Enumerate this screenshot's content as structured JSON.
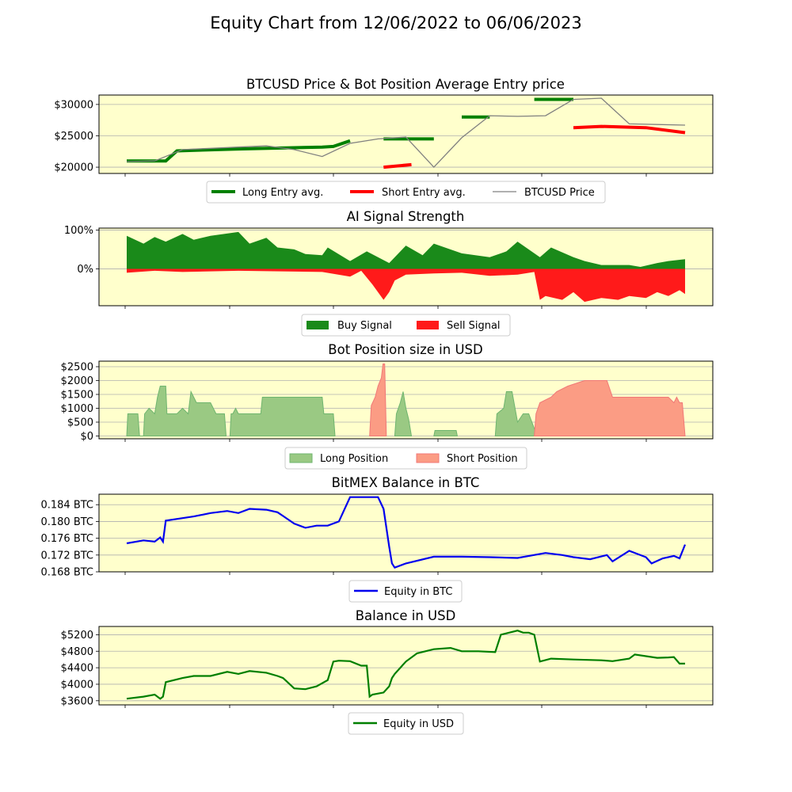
{
  "title": "Equity Chart from 12/06/2022 to 06/06/2023",
  "colors": {
    "panel_bg": "#ffffcc",
    "grid": "#b0b0b0",
    "long": "#008000",
    "short": "#ff0000",
    "price": "#808080",
    "buy": "#1a8a1a",
    "sell": "#ff1a1a",
    "long_pos": "#9ac983",
    "long_pos_edge": "#6fb56f",
    "short_pos": "#fb9c84",
    "short_pos_edge": "#f07878",
    "btc": "#0000ee",
    "usd": "#007f00"
  },
  "chart_data": [
    {
      "id": "price",
      "type": "line",
      "title": "BTCUSD Price & Bot Position Average Entry price",
      "ylim": [
        19000,
        31500
      ],
      "yticks": [
        20000,
        25000,
        30000
      ],
      "ytick_labels": [
        "$20000",
        "$25000",
        "$30000"
      ],
      "x": [
        0,
        5,
        10,
        15,
        20,
        25,
        30,
        35,
        40,
        45,
        50,
        55,
        60,
        65,
        70,
        75,
        80,
        85,
        90,
        95,
        100
      ],
      "series": [
        {
          "name": "BTCUSD Price",
          "values": [
            20900,
            21000,
            22800,
            23000,
            23200,
            23400,
            22800,
            21700,
            23800,
            24500,
            24800,
            20000,
            24700,
            28200,
            28100,
            28200,
            30800,
            31000,
            26900,
            26800,
            26700
          ]
        },
        {
          "name": "Long Entry avg.",
          "segments": [
            [
              [
                0,
                21000
              ],
              [
                7,
                21000
              ],
              [
                9,
                22600
              ],
              [
                20,
                22900
              ],
              [
                35,
                23200
              ],
              [
                37,
                23300
              ],
              [
                40,
                24200
              ]
            ],
            [
              [
                46,
                24500
              ],
              [
                55,
                24500
              ]
            ],
            [
              [
                60,
                28000
              ],
              [
                65,
                28000
              ]
            ],
            [
              [
                73,
                30800
              ],
              [
                80,
                30800
              ]
            ]
          ]
        },
        {
          "name": "Short Entry avg.",
          "segments": [
            [
              [
                46,
                20000
              ],
              [
                51,
                20400
              ]
            ],
            [
              [
                80,
                26300
              ],
              [
                85,
                26500
              ],
              [
                93,
                26300
              ],
              [
                100,
                25500
              ]
            ]
          ]
        }
      ]
    },
    {
      "id": "signal",
      "type": "area",
      "title": "AI Signal Strength",
      "ylim": [
        -95,
        105
      ],
      "yticks": [
        0,
        100
      ],
      "ytick_labels": [
        "0%",
        "100%"
      ],
      "series": [
        {
          "name": "Buy Signal",
          "x": [
            0,
            3,
            5,
            7,
            10,
            12,
            15,
            20,
            22,
            25,
            27,
            30,
            32,
            35,
            36,
            40,
            43,
            47,
            50,
            53,
            55,
            60,
            65,
            68,
            70,
            74,
            76,
            80,
            82,
            85,
            90,
            92,
            95,
            97,
            100
          ],
          "values": [
            85,
            65,
            82,
            70,
            90,
            75,
            85,
            95,
            65,
            80,
            55,
            50,
            38,
            35,
            55,
            20,
            45,
            15,
            60,
            35,
            65,
            40,
            30,
            45,
            70,
            30,
            55,
            30,
            20,
            10,
            10,
            5,
            15,
            20,
            25
          ]
        },
        {
          "name": "Sell Signal",
          "x": [
            0,
            5,
            10,
            20,
            25,
            35,
            40,
            42,
            44,
            46,
            47,
            48,
            50,
            55,
            60,
            65,
            70,
            73,
            74,
            75,
            78,
            80,
            82,
            85,
            88,
            90,
            93,
            95,
            97,
            99,
            100
          ],
          "values": [
            -10,
            -5,
            -8,
            -5,
            -6,
            -8,
            -20,
            -5,
            -40,
            -80,
            -60,
            -30,
            -15,
            -12,
            -10,
            -18,
            -15,
            -8,
            -80,
            -70,
            -80,
            -60,
            -85,
            -75,
            -80,
            -70,
            -75,
            -60,
            -70,
            -55,
            -65
          ]
        }
      ]
    },
    {
      "id": "position",
      "type": "area",
      "title": "Bot Position size in USD",
      "ylim": [
        -100,
        2700
      ],
      "yticks": [
        0,
        500,
        1000,
        1500,
        2000,
        2500
      ],
      "ytick_labels": [
        "$0",
        "$500",
        "$1000",
        "$1500",
        "$2000",
        "$2500"
      ],
      "series": [
        {
          "name": "Long Position",
          "segments": [
            [
              [
                0,
                0
              ],
              [
                0.2,
                800
              ],
              [
                2,
                800
              ],
              [
                2.3,
                0
              ],
              [
                3,
                0
              ],
              [
                3.2,
                800
              ],
              [
                4,
                1000
              ],
              [
                5,
                800
              ],
              [
                5.5,
                1400
              ],
              [
                6,
                1800
              ],
              [
                7,
                1800
              ],
              [
                7.2,
                800
              ],
              [
                9,
                800
              ],
              [
                10,
                1000
              ],
              [
                11,
                800
              ],
              [
                11.5,
                1600
              ],
              [
                12.5,
                1200
              ],
              [
                15,
                1200
              ],
              [
                16,
                800
              ],
              [
                17.5,
                800
              ],
              [
                17.8,
                0
              ]
            ],
            [
              [
                18.5,
                0
              ],
              [
                18.7,
                800
              ],
              [
                19,
                800
              ],
              [
                19.5,
                1000
              ],
              [
                20,
                800
              ],
              [
                24,
                800
              ],
              [
                24.3,
                1400
              ],
              [
                35,
                1400
              ],
              [
                35.3,
                800
              ],
              [
                37,
                800
              ],
              [
                37.3,
                0
              ]
            ],
            [
              [
                48,
                0
              ],
              [
                48.3,
                800
              ],
              [
                49,
                1200
              ],
              [
                49.5,
                1600
              ],
              [
                50,
                1000
              ],
              [
                50.5,
                600
              ],
              [
                51,
                0
              ]
            ],
            [
              [
                55,
                0
              ],
              [
                55.2,
                200
              ],
              [
                59,
                200
              ],
              [
                59.2,
                0
              ]
            ],
            [
              [
                66,
                0
              ],
              [
                66.3,
                800
              ],
              [
                67.5,
                1000
              ],
              [
                68,
                1600
              ],
              [
                69,
                1600
              ],
              [
                70,
                500
              ],
              [
                71,
                800
              ],
              [
                72,
                800
              ],
              [
                73.5,
                0
              ]
            ]
          ]
        },
        {
          "name": "Short Position",
          "segments": [
            [
              [
                43.5,
                0
              ],
              [
                43.8,
                1100
              ],
              [
                44.5,
                1400
              ],
              [
                45,
                1800
              ],
              [
                45.6,
                2100
              ],
              [
                45.9,
                2600
              ],
              [
                46.2,
                2600
              ],
              [
                46.5,
                0
              ]
            ],
            [
              [
                73,
                0
              ],
              [
                73.3,
                800
              ],
              [
                74,
                1200
              ],
              [
                76,
                1400
              ],
              [
                77,
                1600
              ],
              [
                79,
                1800
              ],
              [
                82,
                2000
              ],
              [
                86,
                2000
              ],
              [
                87,
                1400
              ],
              [
                97,
                1400
              ],
              [
                98,
                1200
              ],
              [
                98.5,
                1400
              ],
              [
                99,
                1200
              ],
              [
                99.5,
                1200
              ],
              [
                100,
                0
              ]
            ]
          ]
        }
      ]
    },
    {
      "id": "btc",
      "type": "line",
      "title": "BitMEX Balance in BTC",
      "ylim": [
        0.168,
        0.1865
      ],
      "yticks": [
        0.168,
        0.172,
        0.176,
        0.18,
        0.184
      ],
      "ytick_labels": [
        "0.168 BTC",
        "0.172 BTC",
        "0.176 BTC",
        "0.180 BTC",
        "0.184 BTC"
      ],
      "series": [
        {
          "name": "Equity in BTC",
          "x": [
            0,
            3,
            5,
            6,
            6.5,
            7,
            10,
            12,
            15,
            18,
            20,
            22,
            25,
            27,
            28,
            30,
            32,
            34,
            36,
            38,
            40,
            45,
            46,
            47,
            47.5,
            48,
            50,
            55,
            60,
            65,
            70,
            75,
            78,
            80,
            83,
            86,
            87,
            90,
            93,
            94,
            96,
            98,
            99,
            100
          ],
          "values": [
            0.1748,
            0.1755,
            0.1752,
            0.1762,
            0.1752,
            0.1802,
            0.1808,
            0.1812,
            0.182,
            0.1825,
            0.182,
            0.183,
            0.1828,
            0.1822,
            0.1813,
            0.1795,
            0.1785,
            0.179,
            0.179,
            0.18,
            0.1858,
            0.1858,
            0.183,
            0.174,
            0.17,
            0.169,
            0.17,
            0.1716,
            0.1716,
            0.1715,
            0.1713,
            0.1725,
            0.172,
            0.1715,
            0.171,
            0.172,
            0.1705,
            0.173,
            0.1715,
            0.17,
            0.1712,
            0.1718,
            0.1712,
            0.1745
          ]
        }
      ]
    },
    {
      "id": "usd",
      "type": "line",
      "title": "Balance in USD",
      "ylim": [
        3500,
        5400
      ],
      "yticks": [
        3600,
        4000,
        4400,
        4800,
        5200
      ],
      "ytick_labels": [
        "$3600",
        "$4000",
        "$4400",
        "$4800",
        "$5200"
      ],
      "series": [
        {
          "name": "Equity in USD",
          "x": [
            0,
            3,
            5,
            6,
            6.5,
            7,
            10,
            12,
            15,
            18,
            20,
            22,
            25,
            27,
            28,
            30,
            32,
            34,
            36,
            37,
            38,
            40,
            42,
            43,
            43.5,
            44,
            46,
            47,
            47.5,
            48,
            50,
            52,
            55,
            58,
            60,
            63,
            66,
            67,
            70,
            71,
            72,
            73,
            74,
            76,
            80,
            85,
            87,
            90,
            91,
            93,
            95,
            97,
            98,
            99,
            100
          ],
          "values": [
            3650,
            3700,
            3750,
            3650,
            3700,
            4050,
            4150,
            4200,
            4200,
            4300,
            4250,
            4320,
            4280,
            4200,
            4150,
            3900,
            3880,
            3950,
            4100,
            4550,
            4570,
            4560,
            4450,
            4450,
            3700,
            3750,
            3800,
            3950,
            4150,
            4250,
            4550,
            4750,
            4850,
            4880,
            4800,
            4800,
            4780,
            5200,
            5300,
            5250,
            5250,
            5200,
            4550,
            4620,
            4600,
            4580,
            4560,
            4620,
            4720,
            4680,
            4640,
            4650,
            4660,
            4500,
            4500
          ]
        }
      ]
    }
  ],
  "legends": {
    "price": [
      "Long Entry avg.",
      "Short Entry avg.",
      "BTCUSD Price"
    ],
    "signal": [
      "Buy Signal",
      "Sell Signal"
    ],
    "position": [
      "Long Position",
      "Short Position"
    ],
    "btc": [
      "Equity in BTC"
    ],
    "usd": [
      "Equity in USD"
    ]
  }
}
